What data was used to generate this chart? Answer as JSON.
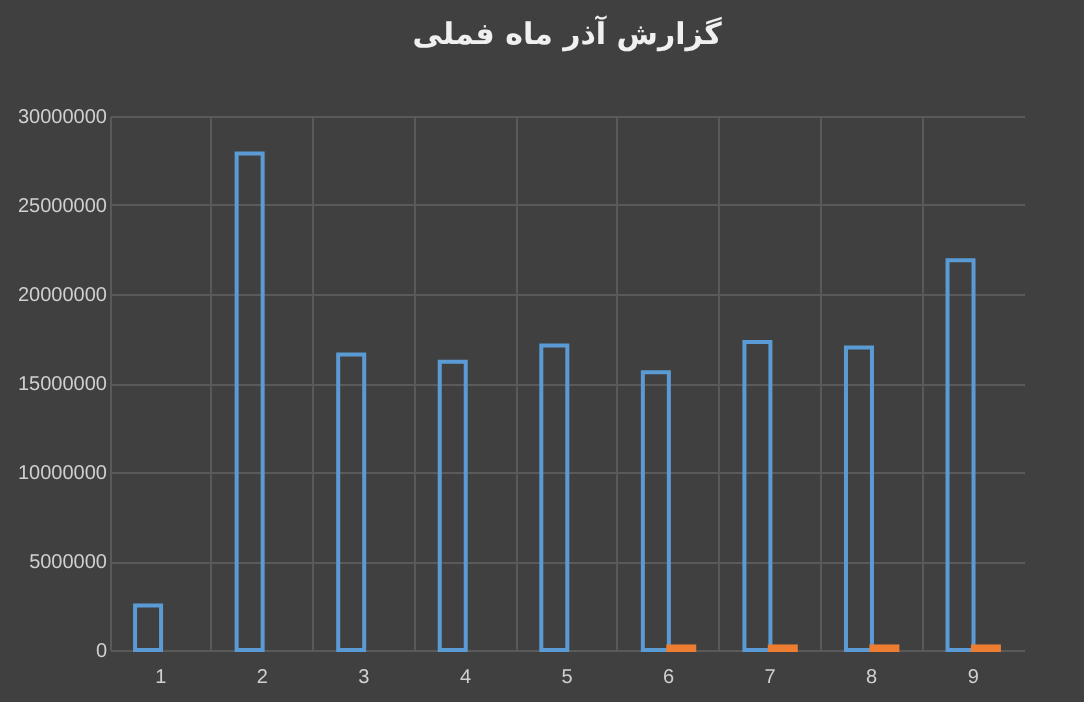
{
  "chart_data": {
    "type": "bar",
    "title": "گزارش آذر ماه فملی",
    "categories": [
      "1",
      "2",
      "3",
      "4",
      "5",
      "6",
      "7",
      "8",
      "9"
    ],
    "series": [
      {
        "color": "#5b9bd5",
        "values": [
          2500000,
          27900000,
          16600000,
          16200000,
          17100000,
          15600000,
          17300000,
          17000000,
          21900000
        ]
      },
      {
        "color": "#ed7d31",
        "values": [
          null,
          null,
          null,
          null,
          null,
          200000,
          200000,
          200000,
          200000
        ]
      }
    ],
    "ylim": [
      0,
      30000000
    ],
    "yticks": [
      0,
      5000000,
      10000000,
      15000000,
      20000000,
      25000000,
      30000000
    ],
    "grid": true,
    "legend": false
  }
}
